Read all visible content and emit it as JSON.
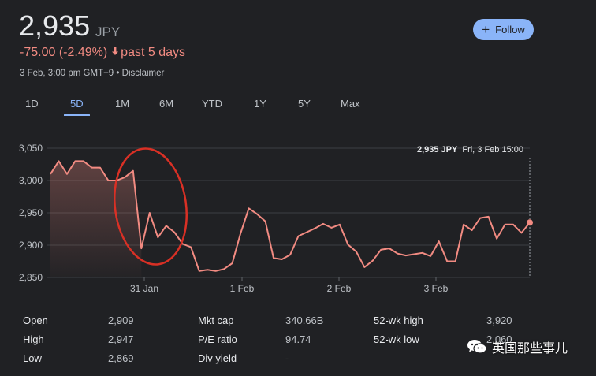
{
  "header": {
    "price": "2,935",
    "currency": "JPY",
    "change": "-75.00 (-2.49%)",
    "change_period": "past 5 days",
    "meta_time": "3 Feb, 3:00 pm GMT+9",
    "meta_separator": "•",
    "meta_disclaimer": "Disclaimer",
    "follow_label": "Follow",
    "colors": {
      "negative": "#f28b82",
      "accent": "#8ab4f8"
    }
  },
  "tabs": [
    {
      "label": "1D",
      "active": false
    },
    {
      "label": "5D",
      "active": true
    },
    {
      "label": "1M",
      "active": false
    },
    {
      "label": "6M",
      "active": false
    },
    {
      "label": "YTD",
      "active": false
    },
    {
      "label": "1Y",
      "active": false
    },
    {
      "label": "5Y",
      "active": false
    },
    {
      "label": "Max",
      "active": false
    }
  ],
  "chart_data": {
    "type": "area",
    "tooltip": {
      "value": "2,935 JPY",
      "date": "Fri, 3 Feb 15:00"
    },
    "y_ticks": [
      "3,050",
      "3,000",
      "2,950",
      "2,900",
      "2,850"
    ],
    "x_ticks": [
      "31 Jan",
      "1 Feb",
      "2 Feb",
      "3 Feb"
    ],
    "ylim": [
      2850,
      3050
    ],
    "grid": true,
    "previous_close_reference": 3010,
    "series": [
      {
        "values": [
          3010,
          3030,
          3010,
          3030,
          3030,
          3020,
          3020,
          3000,
          3000,
          3005,
          3015,
          2895,
          2950,
          2912,
          2930,
          2920,
          2902,
          2897,
          2860,
          2862,
          2860,
          2863,
          2872,
          2918,
          2957,
          2948,
          2937,
          2880,
          2878,
          2885,
          2914,
          2920,
          2926,
          2933,
          2927,
          2932,
          2901,
          2890,
          2866,
          2876,
          2893,
          2895,
          2887,
          2884,
          2886,
          2888,
          2883,
          2906,
          2875,
          2875,
          2932,
          2923,
          2942,
          2944,
          2910,
          2932,
          2932,
          2919,
          2935
        ]
      }
    ],
    "colors": {
      "line": "#f28b82",
      "fill": "#f28b82",
      "annotation": "#d93025"
    }
  },
  "stats": {
    "columns": [
      [
        {
          "label": "Open",
          "value": "2,909"
        },
        {
          "label": "High",
          "value": "2,947"
        },
        {
          "label": "Low",
          "value": "2,869"
        }
      ],
      [
        {
          "label": "Mkt cap",
          "value": "340.66B"
        },
        {
          "label": "P/E ratio",
          "value": "94.74"
        },
        {
          "label": "Div yield",
          "value": "-"
        }
      ],
      [
        {
          "label": "52-wk high",
          "value": "3,920"
        },
        {
          "label": "52-wk low",
          "value": "2,060"
        }
      ]
    ]
  },
  "watermark": {
    "text": "英国那些事儿",
    "icon": "wechat-icon"
  }
}
